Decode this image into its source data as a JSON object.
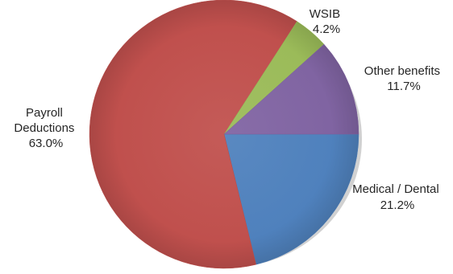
{
  "chart_data": {
    "type": "pie",
    "title": "",
    "slices": [
      {
        "label": "Medical / Dental",
        "value": 21.2,
        "pct_label": "21.2%",
        "color": "#4f81bd"
      },
      {
        "label": "Payroll Deductions",
        "value": 63.0,
        "pct_label": "63.0%",
        "color": "#c0504d"
      },
      {
        "label": "WSIB",
        "value": 4.2,
        "pct_label": "4.2%",
        "color": "#9bbb59"
      },
      {
        "label": "Other benefits",
        "value": 11.7,
        "pct_label": "11.7%",
        "color": "#8064a2"
      }
    ],
    "start_angle_deg": 90,
    "direction": "clockwise",
    "style": "3d-shaded",
    "legend": "none",
    "data_labels": "outside"
  }
}
